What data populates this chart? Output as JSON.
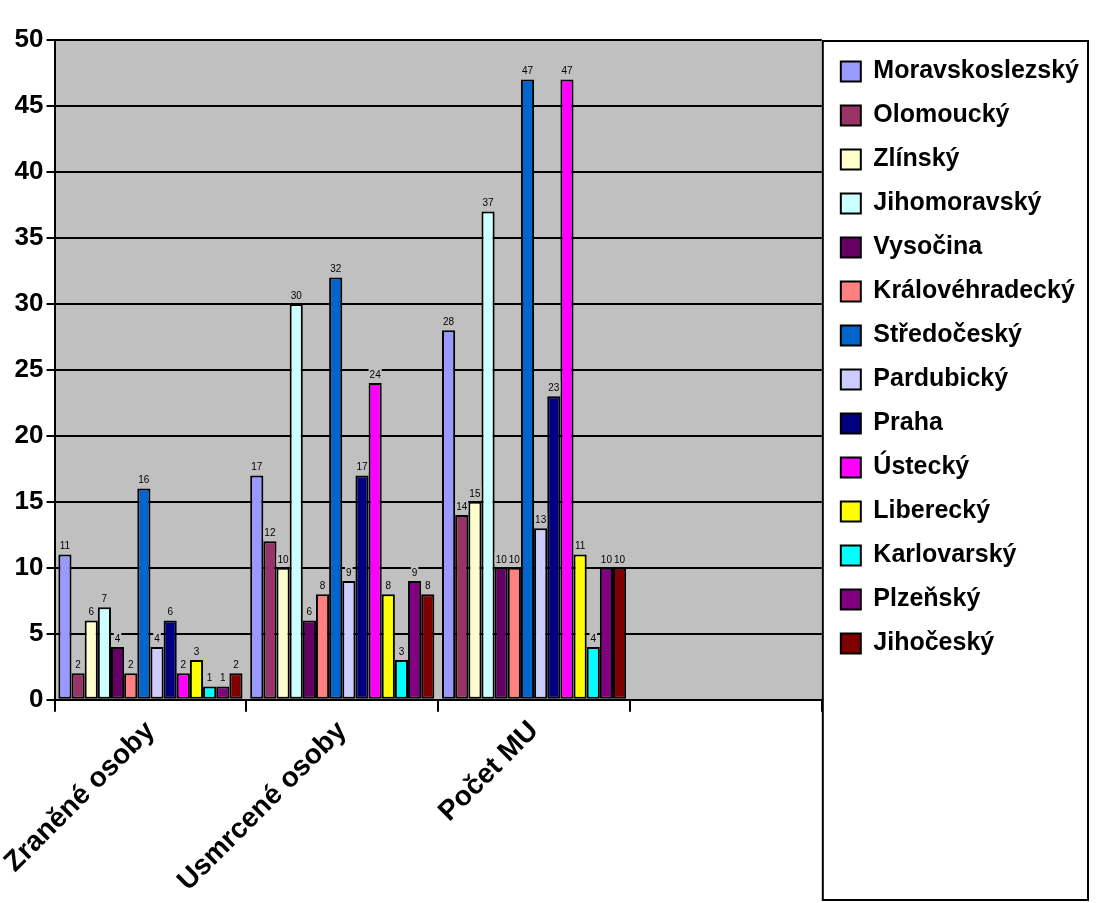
{
  "chart_data": {
    "type": "bar",
    "categories": [
      "Zraněné osoby",
      "Usmrcené osoby",
      "Počet MU",
      null
    ],
    "series": [
      {
        "name": "Moravskoslezský",
        "color": "#9999ff",
        "values": [
          11,
          17,
          28,
          null
        ]
      },
      {
        "name": "Olomoucký",
        "color": "#993366",
        "values": [
          2,
          12,
          14,
          null
        ]
      },
      {
        "name": "Zlínský",
        "color": "#ffffcc",
        "values": [
          6,
          10,
          15,
          null
        ]
      },
      {
        "name": "Jihomoravský",
        "color": "#ccffff",
        "values": [
          7,
          30,
          37,
          null
        ]
      },
      {
        "name": "Vysočina",
        "color": "#660066",
        "values": [
          4,
          6,
          10,
          null
        ]
      },
      {
        "name": "Královéhradecký",
        "color": "#ff8080",
        "values": [
          2,
          8,
          10,
          null
        ]
      },
      {
        "name": "Středočeský",
        "color": "#0066cc",
        "values": [
          16,
          32,
          47,
          null
        ]
      },
      {
        "name": "Pardubický",
        "color": "#ccccff",
        "values": [
          4,
          9,
          13,
          null
        ]
      },
      {
        "name": "Praha",
        "color": "#000080",
        "values": [
          6,
          17,
          23,
          null
        ]
      },
      {
        "name": "Ústecký",
        "color": "#ff00ff",
        "values": [
          2,
          24,
          47,
          null
        ]
      },
      {
        "name": "Liberecký",
        "color": "#ffff00",
        "values": [
          3,
          8,
          11,
          null
        ]
      },
      {
        "name": "Karlovarský",
        "color": "#00ffff",
        "values": [
          1,
          3,
          4,
          null
        ]
      },
      {
        "name": "Plzeňský",
        "color": "#800080",
        "values": [
          1,
          9,
          10,
          null
        ]
      },
      {
        "name": "Jihočeský",
        "color": "#800000",
        "values": [
          2,
          8,
          10,
          null
        ]
      }
    ],
    "ylim": [
      0,
      50
    ],
    "yticks": [
      0,
      5,
      10,
      15,
      20,
      25,
      30,
      35,
      40,
      45,
      50
    ],
    "grid": "y",
    "legend": "right",
    "data_labels": true
  }
}
